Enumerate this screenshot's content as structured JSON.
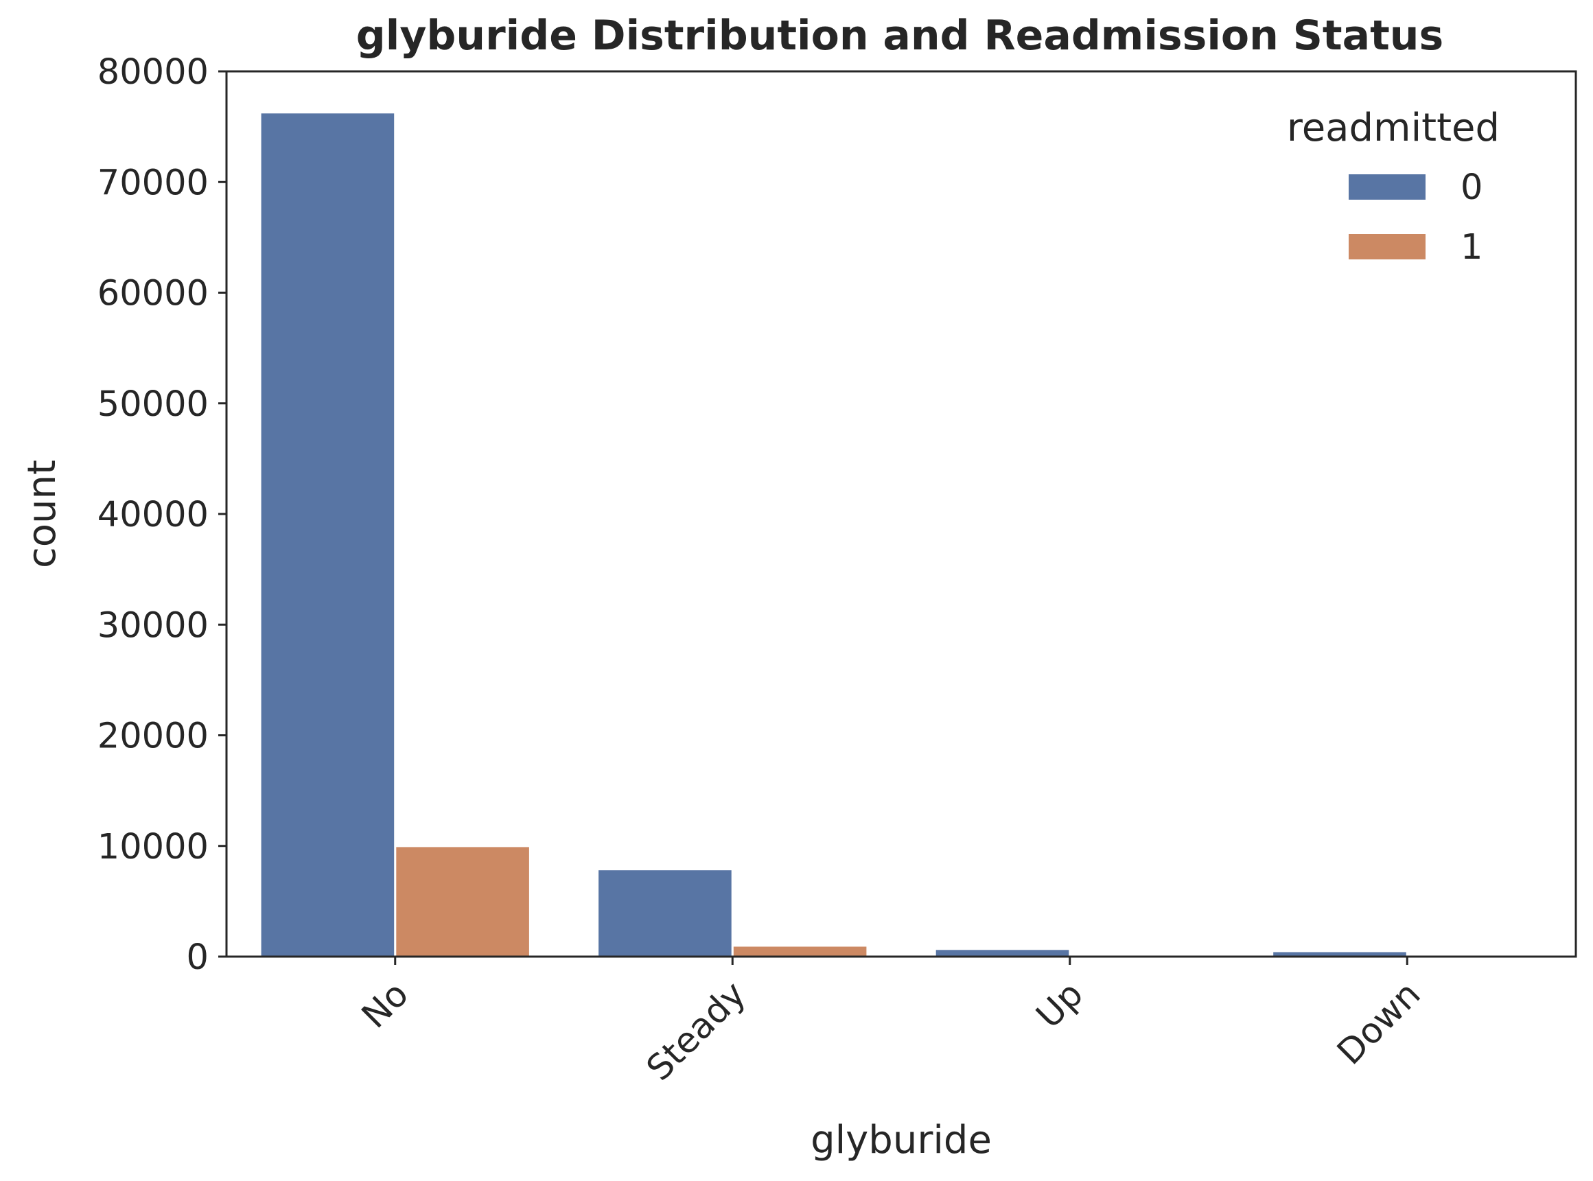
{
  "chart_data": {
    "type": "bar",
    "title": "glyburide Distribution and Readmission Status",
    "xlabel": "glyburide",
    "ylabel": "count",
    "categories": [
      "No",
      "Steady",
      "Up",
      "Down"
    ],
    "series": [
      {
        "name": "0",
        "color": "#5875a4",
        "values": [
          76200,
          7800,
          600,
          400
        ]
      },
      {
        "name": "1",
        "color": "#cc8963",
        "values": [
          9900,
          900,
          50,
          30
        ]
      }
    ],
    "ylim": [
      0,
      80000
    ],
    "yticks": [
      "0",
      "10000",
      "20000",
      "30000",
      "40000",
      "50000",
      "60000",
      "70000",
      "80000"
    ],
    "yticks_values": [
      0,
      10000,
      20000,
      30000,
      40000,
      50000,
      60000,
      70000,
      80000
    ],
    "legend": {
      "title": "readmitted",
      "position": "top-right"
    },
    "grid": false,
    "xtick_rotation_deg": 45
  }
}
